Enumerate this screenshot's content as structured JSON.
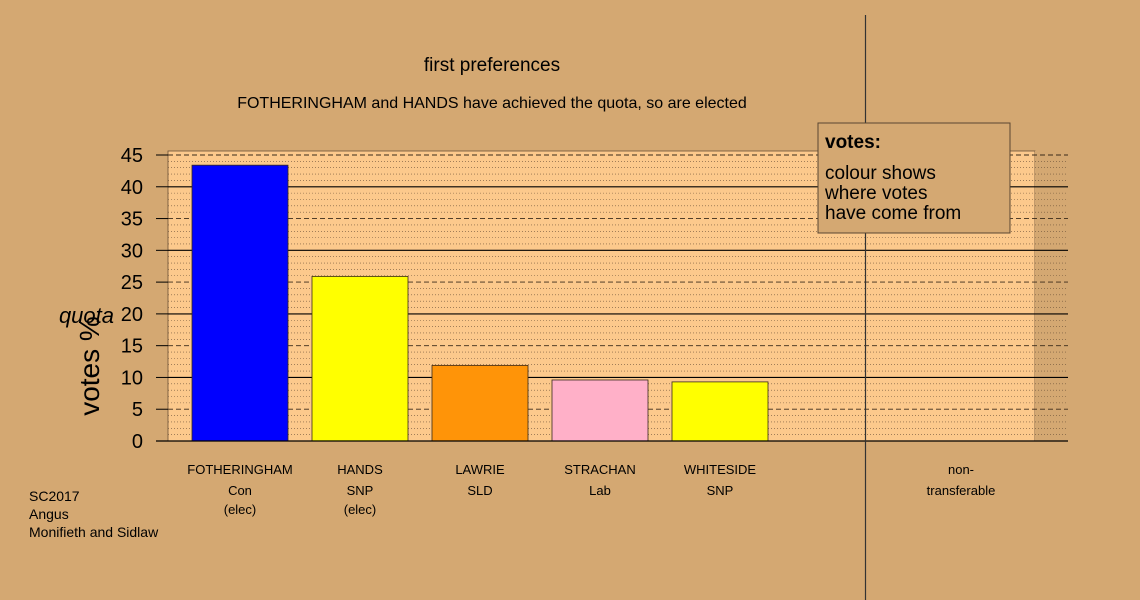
{
  "chart_data": {
    "type": "bar",
    "title": "first preferences",
    "subtitle": "FOTHERINGHAM and HANDS have achieved the quota, so are elected",
    "ylabel": "votes %",
    "quota_label": "quota",
    "quota_value": 20,
    "ylim": [
      0,
      45
    ],
    "yticks": [
      0,
      5,
      10,
      15,
      20,
      25,
      30,
      35,
      40,
      45
    ],
    "categories": [
      {
        "name": "FOTHERINGHAM",
        "party": "Con",
        "status": "(elec)",
        "value": 43.4,
        "color": "#0000ff"
      },
      {
        "name": "HANDS",
        "party": "SNP",
        "status": "(elec)",
        "value": 25.9,
        "color": "#ffff00"
      },
      {
        "name": "LAWRIE",
        "party": "SLD",
        "status": "",
        "value": 11.9,
        "color": "#ff9408"
      },
      {
        "name": "STRACHAN",
        "party": "Lab",
        "status": "",
        "value": 9.6,
        "color": "#ffb0c8"
      },
      {
        "name": "WHITESIDE",
        "party": "SNP",
        "status": "",
        "value": 9.3,
        "color": "#ffff00"
      }
    ],
    "nontransferable": {
      "line1": "non-",
      "line2": "transferable",
      "value": 0
    },
    "legend": {
      "title": "votes:",
      "lines": [
        "colour shows",
        "where votes",
        "have come from"
      ],
      "placement": "top-right"
    },
    "colors": {
      "background": "#d4a872",
      "plot_area": "#fcc98c",
      "plot_area_right": "#d4a872"
    }
  },
  "footer": {
    "line1": "SC2017",
    "line2": "Angus",
    "line3": "Monifieth and Sidlaw"
  }
}
